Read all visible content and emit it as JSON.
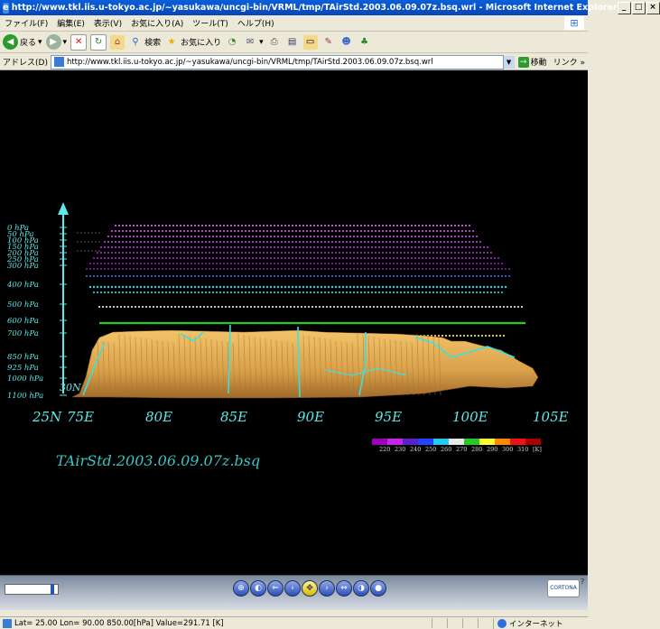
{
  "window": {
    "title": "http://www.tkl.iis.u-tokyo.ac.jp/~yasukawa/uncgi-bin/VRML/tmp/TAirStd.2003.06.09.07z.bsq.wrl - Microsoft Internet Explorer",
    "buttons": {
      "minimize": "_",
      "maximize": "□",
      "close": "×"
    }
  },
  "menu": [
    "ファイル(F)",
    "編集(E)",
    "表示(V)",
    "お気に入り(A)",
    "ツール(T)",
    "ヘルプ(H)"
  ],
  "toolbar": {
    "back_label": "戻る",
    "search_label": "検索",
    "favorites_label": "お気に入り"
  },
  "address": {
    "label": "アドレス(D)",
    "url": "http://www.tkl.iis.u-tokyo.ac.jp/~yasukawa/uncgi-bin/VRML/tmp/TAirStd.2003.06.09.07z.bsq.wrl",
    "go_label": "移動",
    "links_label": "リンク »"
  },
  "viewer": {
    "pressure_levels": [
      "0 hPa",
      "50 hPa",
      "100 hPa",
      "150 hPa",
      "200 hPa",
      "250 hPa",
      "300 hPa",
      "400 hPa",
      "500 hPa",
      "600 hPa",
      "700 hPa",
      "850 hPa",
      "925 hPa",
      "1000 hPa",
      "1100 hPa"
    ],
    "corner_lat": "30N",
    "lat_label": "25N",
    "lon_labels": [
      "75E",
      "80E",
      "85E",
      "90E",
      "95E",
      "100E",
      "105E"
    ],
    "legend_values": [
      "220",
      "230",
      "240",
      "250",
      "260",
      "270",
      "280",
      "290",
      "300",
      "310",
      "[K]"
    ],
    "legend_colors": [
      "#9a00b8",
      "#cc22ee",
      "#5a22cc",
      "#2244ff",
      "#22ccee",
      "#e8e8e8",
      "#22cc22",
      "#ffff33",
      "#ff8800",
      "#ee1111",
      "#aa0000"
    ],
    "dataset_title": "TAirStd.2003.06.09.07z.bsq"
  },
  "status": {
    "text": "Lat= 25.00  Lon= 90.00  850.00[hPa]  Value=291.71 [K]",
    "zone": "インターネット"
  }
}
